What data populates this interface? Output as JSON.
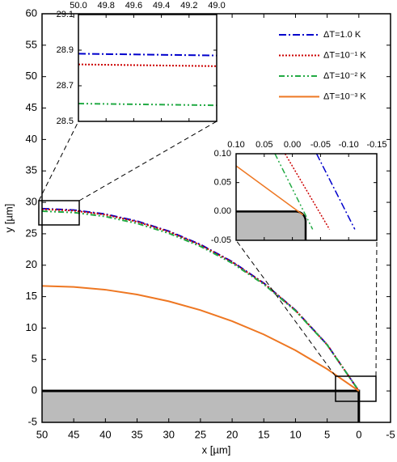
{
  "chart_data": [
    {
      "type": "line",
      "xlabel": "x [µm]",
      "ylabel": "y [µm]",
      "xlim": [
        50,
        -5
      ],
      "ylim": [
        -5,
        60
      ],
      "xticks": [
        50,
        45,
        40,
        35,
        30,
        25,
        20,
        15,
        10,
        5,
        0,
        -5
      ],
      "yticks": [
        -5,
        0,
        5,
        10,
        15,
        20,
        25,
        30,
        35,
        40,
        45,
        50,
        55,
        60
      ],
      "x": [
        50,
        45,
        40,
        35,
        30,
        25,
        20,
        15,
        10,
        5,
        0
      ],
      "series": [
        {
          "name": "ΔT=1.0 K",
          "color": "#0000cc",
          "linestyle": "dash-dot",
          "values": [
            29.0,
            28.78,
            28.13,
            27.01,
            25.42,
            23.29,
            20.57,
            17.15,
            12.85,
            7.36,
            0
          ]
        },
        {
          "name": "ΔT=10⁻¹ K",
          "color": "#cc0000",
          "linestyle": "dotted",
          "values": [
            28.9,
            28.68,
            28.03,
            26.92,
            25.33,
            23.21,
            20.5,
            17.1,
            12.82,
            7.35,
            0
          ]
        },
        {
          "name": "ΔT=10⁻² K",
          "color": "#22aa44",
          "linestyle": "dash-dot-dot",
          "values": [
            28.6,
            28.38,
            27.74,
            26.65,
            25.08,
            23.0,
            20.33,
            16.97,
            12.74,
            7.31,
            0
          ]
        },
        {
          "name": "ΔT=10⁻³ K",
          "color": "#ee7722",
          "linestyle": "solid",
          "values": [
            16.7,
            16.55,
            16.1,
            15.34,
            14.26,
            12.85,
            11.1,
            8.98,
            6.45,
            3.48,
            0
          ]
        }
      ],
      "legend": "upper right",
      "substrate": true
    },
    {
      "type": "line",
      "xlim": [
        50,
        49
      ],
      "ylim": [
        28.5,
        29.1
      ],
      "xticks": [
        {
          "value": 50,
          "label": "50.0"
        },
        49.8,
        49.6,
        49.4,
        49.2,
        {
          "value": 49,
          "label": "49.0"
        }
      ],
      "yticks": [
        28.5,
        28.7,
        28.9,
        29.1
      ],
      "x": [
        50,
        49
      ],
      "series": [
        {
          "color": "#0000cc",
          "linestyle": "dash-dot",
          "values": [
            28.88,
            28.87
          ]
        },
        {
          "color": "#cc0000",
          "linestyle": "dotted",
          "values": [
            28.82,
            28.81
          ]
        },
        {
          "color": "#22aa44",
          "linestyle": "dash-dot-dot",
          "values": [
            28.6,
            28.59
          ]
        }
      ]
    },
    {
      "type": "line",
      "xlim": [
        0.1,
        -0.15
      ],
      "ylim": [
        -0.05,
        0.1
      ],
      "xticks": [
        {
          "value": 0.1,
          "label": "0.10"
        },
        0.05,
        {
          "value": 0,
          "label": "0.00"
        },
        -0.05,
        {
          "value": -0.1,
          "label": "-0.10"
        },
        -0.15
      ],
      "yticks": [
        -0.05,
        {
          "value": 0,
          "label": "0.00"
        },
        0.05,
        {
          "value": 0.1,
          "label": "0.10"
        }
      ],
      "series": [
        {
          "color": "#0000cc",
          "linestyle": "dash-dot",
          "x": [
            -0.043,
            -0.111
          ],
          "values": [
            0.1,
            -0.031
          ]
        },
        {
          "color": "#cc0000",
          "linestyle": "dotted",
          "x": [
            0.013,
            -0.066
          ],
          "values": [
            0.1,
            -0.031
          ]
        },
        {
          "color": "#22aa44",
          "linestyle": "dash-dot-dot",
          "x": [
            0.031,
            -0.036
          ],
          "values": [
            0.1,
            -0.031
          ]
        },
        {
          "color": "#ee7722",
          "linestyle": "solid",
          "x": [
            0.1,
            -0.019
          ],
          "values": [
            0.079,
            -0.006
          ]
        }
      ]
    }
  ]
}
